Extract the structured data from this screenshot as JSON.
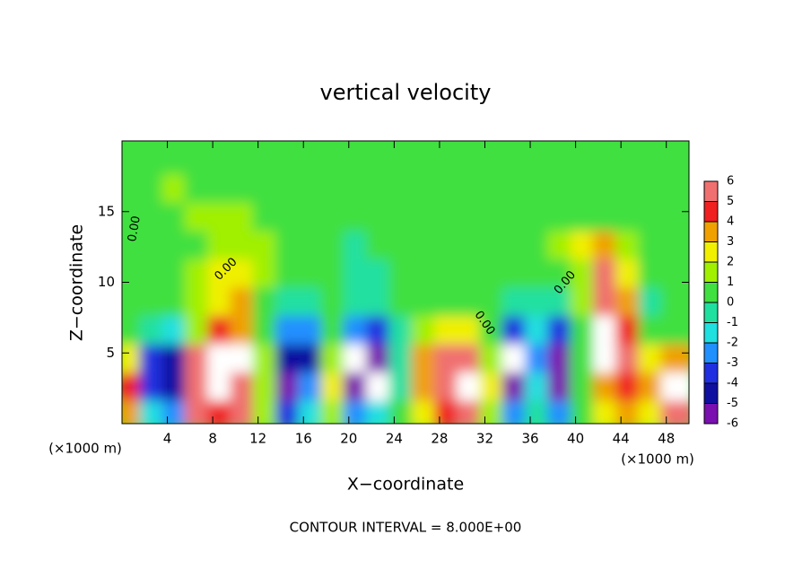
{
  "chart_data": {
    "type": "heatmap",
    "title": "vertical velocity",
    "x_label": "X−coordinate",
    "y_label": "Z−coordinate",
    "x_unit_label": "(×1000 m)",
    "y_unit_label": "(×1000 m)",
    "footer": "CONTOUR INTERVAL = 8.000E+00",
    "contour_labels": [
      "0.00",
      "0.00",
      "0.00",
      "0.00"
    ],
    "xlim": [
      0,
      50
    ],
    "ylim": [
      0,
      20
    ],
    "xticks": [
      4,
      8,
      12,
      16,
      20,
      24,
      28,
      32,
      36,
      40,
      44,
      48
    ],
    "yticks": [
      5,
      10,
      15
    ],
    "x": [
      1,
      3,
      5,
      7,
      9,
      11,
      13,
      15,
      17,
      19,
      21,
      23,
      25,
      27,
      29,
      31,
      33,
      35,
      37,
      39,
      41,
      43,
      45,
      47,
      49
    ],
    "y": [
      1,
      3,
      5,
      7,
      9,
      11,
      13,
      15,
      17,
      19
    ],
    "values": [
      [
        3,
        -2,
        -3,
        5,
        4,
        5,
        1,
        -4,
        -2,
        1,
        -3,
        -2,
        0,
        2,
        4,
        6,
        1,
        -3,
        -1,
        -3,
        0,
        2,
        3,
        2,
        5
      ],
      [
        4,
        -4,
        -5,
        6,
        7,
        6,
        1,
        -6,
        -3,
        2,
        -6,
        -7,
        -1,
        3,
        6,
        7,
        2,
        -6,
        -2,
        -6,
        0,
        3,
        4,
        3,
        7
      ],
      [
        2,
        -4,
        -5,
        5,
        7,
        7,
        1,
        -5,
        -5,
        1,
        -7,
        -6,
        -1,
        3,
        5,
        5,
        1,
        -7,
        -3,
        -6,
        0,
        7,
        6,
        2,
        3
      ],
      [
        0,
        -1,
        -2,
        1,
        4,
        3,
        0,
        -3,
        -3,
        0,
        -3,
        -4,
        -1,
        1,
        2,
        2,
        0,
        -4,
        -2,
        -4,
        0,
        8,
        4,
        0,
        0
      ],
      [
        0,
        0,
        0,
        1,
        2,
        3,
        0,
        -1,
        -1,
        0,
        -1,
        -1,
        0,
        0,
        0,
        0,
        0,
        -1,
        -1,
        -1,
        1,
        6,
        3,
        -1,
        0
      ],
      [
        0,
        0,
        0,
        1,
        2,
        2,
        1,
        0,
        0,
        0,
        -1,
        -1,
        0,
        0,
        0,
        0,
        0,
        0,
        0,
        0,
        1,
        5,
        2,
        0,
        0
      ],
      [
        0,
        0,
        0,
        0,
        1,
        1,
        1,
        0,
        0,
        0,
        -1,
        0,
        0,
        0,
        0,
        0,
        0,
        0,
        0,
        1,
        2,
        3,
        1,
        0,
        0
      ],
      [
        0,
        0,
        0,
        1,
        1,
        1,
        0,
        0,
        0,
        0,
        0,
        0,
        0,
        0,
        0,
        0,
        0,
        0,
        0,
        0,
        0,
        0,
        0,
        0,
        0
      ],
      [
        0,
        0,
        1,
        0,
        0,
        0,
        0,
        0,
        0,
        0,
        0,
        0,
        0,
        0,
        0,
        0,
        0,
        0,
        0,
        0,
        0,
        0,
        0,
        0,
        0
      ],
      [
        0,
        0,
        0,
        0,
        0,
        0,
        0,
        0,
        0,
        0,
        0,
        0,
        0,
        0,
        0,
        0,
        0,
        0,
        0,
        0,
        0,
        0,
        0,
        0,
        0
      ]
    ],
    "colorbar": {
      "lim": [
        -6,
        6
      ],
      "ticks": [
        -6,
        -5,
        -4,
        -3,
        -2,
        -1,
        0,
        1,
        2,
        3,
        4,
        5,
        6
      ],
      "colors": [
        "#7a10b0",
        "#1010a0",
        "#2030e0",
        "#2090ff",
        "#20e0e0",
        "#20e0a0",
        "#40e040",
        "#a0f000",
        "#f0f000",
        "#f0a000",
        "#f02020",
        "#f07070"
      ],
      "out_of_range_color": "#ffffff"
    }
  }
}
